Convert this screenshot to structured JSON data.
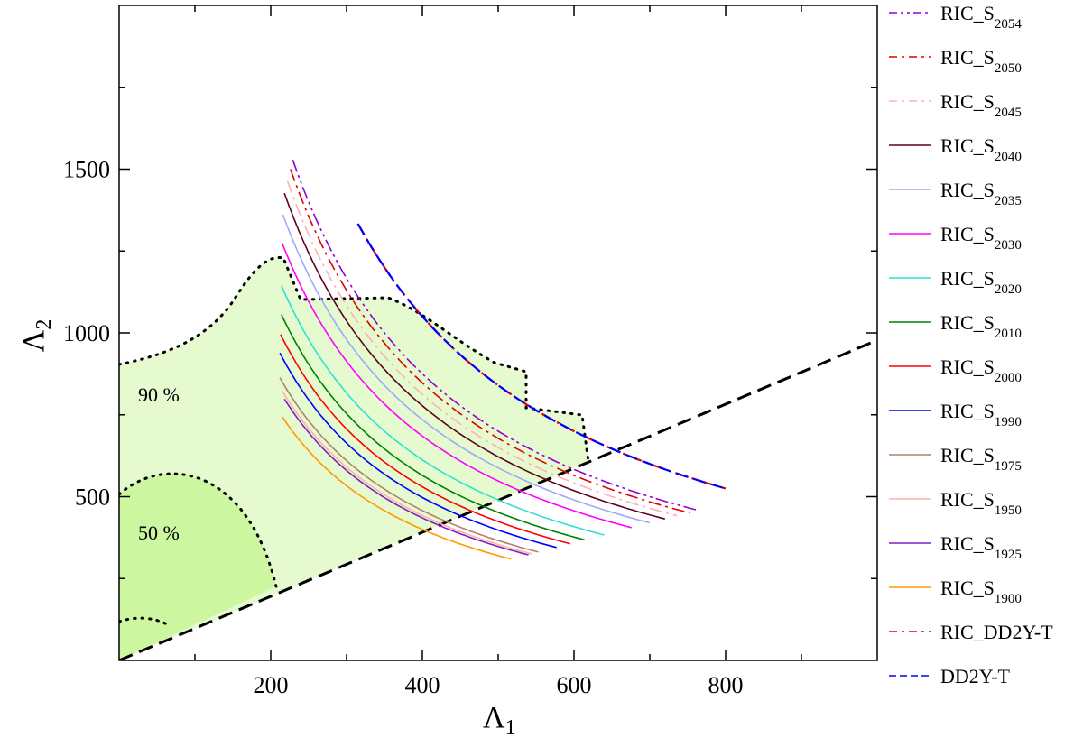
{
  "chart_data": {
    "type": "line",
    "xlabel": "Λ",
    "xlabel_sub": "1",
    "ylabel": "Λ",
    "ylabel_sub": "2",
    "xlim": [
      0,
      1000
    ],
    "ylim": [
      0,
      2000
    ],
    "xticks": [
      200,
      400,
      600,
      800
    ],
    "yticks": [
      500,
      1000,
      1500
    ],
    "grid": false,
    "legend_position": "outside-right",
    "colors": {
      "region_90": "#e6fad0",
      "region_50": "#ccf7a0",
      "diagonal": "#000000"
    },
    "credible_regions": [
      {
        "label": "90 %",
        "level": 0.9
      },
      {
        "label": "50 %",
        "level": 0.5
      }
    ],
    "series": [
      {
        "name": "RIC_S",
        "sub": "2054",
        "color": "#9400D3",
        "dash": "dashdotdot",
        "C": 350000,
        "x_start": 229,
        "x_end": 765
      },
      {
        "name": "RIC_S",
        "sub": "2050",
        "color": "#e00000",
        "dash": "dashdot",
        "C": 339000,
        "x_start": 226,
        "x_end": 752
      },
      {
        "name": "RIC_S",
        "sub": "2045",
        "color": "#ffb0b0",
        "dash": "dashdot",
        "C": 325000,
        "x_start": 222,
        "x_end": 736
      },
      {
        "name": "RIC_S",
        "sub": "2040",
        "color": "#600020",
        "dash": "solid",
        "C": 311000,
        "x_start": 218,
        "x_end": 720
      },
      {
        "name": "RIC_S",
        "sub": "2035",
        "color": "#a0a8f8",
        "dash": "solid",
        "C": 294000,
        "x_start": 216,
        "x_end": 700
      },
      {
        "name": "RIC_S",
        "sub": "2030",
        "color": "#ff00ff",
        "dash": "solid",
        "C": 274000,
        "x_start": 215,
        "x_end": 676
      },
      {
        "name": "RIC_S",
        "sub": "2020",
        "color": "#30e0d0",
        "dash": "solid",
        "C": 245000,
        "x_start": 214,
        "x_end": 640
      },
      {
        "name": "RIC_S",
        "sub": "2010",
        "color": "#008000",
        "dash": "solid",
        "C": 226000,
        "x_start": 214,
        "x_end": 614
      },
      {
        "name": "RIC_S",
        "sub": "2000",
        "color": "#ff0000",
        "dash": "solid",
        "C": 212000,
        "x_start": 213,
        "x_end": 595
      },
      {
        "name": "RIC_S",
        "sub": "1990",
        "color": "#0000ff",
        "dash": "solid",
        "C": 199000,
        "x_start": 212,
        "x_end": 577
      },
      {
        "name": "RIC_S",
        "sub": "1975",
        "color": "#b08070",
        "dash": "solid",
        "C": 183000,
        "x_start": 212,
        "x_end": 553
      },
      {
        "name": "RIC_S",
        "sub": "1950",
        "color": "#ffb0b0",
        "dash": "solid",
        "C": 177000,
        "x_start": 215,
        "x_end": 545
      },
      {
        "name": "RIC_S",
        "sub": "1925",
        "color": "#8020c0",
        "dash": "solid",
        "C": 174000,
        "x_start": 218,
        "x_end": 540
      },
      {
        "name": "RIC_S",
        "sub": "1900",
        "color": "#ff9900",
        "dash": "solid",
        "C": 160000,
        "x_start": 215,
        "x_end": 517
      },
      {
        "name": "RIC_DD2Y-T",
        "sub": "",
        "color": "#e00000",
        "dash": "dashdot",
        "C": 420000,
        "x_start": 315,
        "x_end": 800
      },
      {
        "name": "DD2Y-T",
        "sub": "",
        "color": "#0000ff",
        "dash": "dash",
        "C": 420000,
        "x_start": 315,
        "x_end": 800
      }
    ]
  }
}
